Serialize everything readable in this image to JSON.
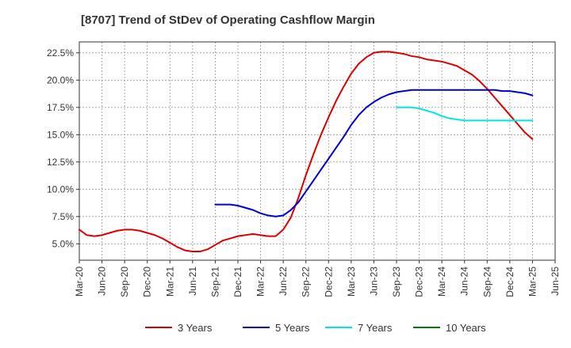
{
  "chart_data": {
    "type": "line",
    "title": "[8707]  Trend of StDev of Operating Cashflow Margin",
    "xlabel": "",
    "ylabel": "",
    "x_ticks": [
      "Mar-20",
      "Jun-20",
      "Sep-20",
      "Dec-20",
      "Mar-21",
      "Jun-21",
      "Sep-21",
      "Dec-21",
      "Mar-22",
      "Jun-22",
      "Sep-22",
      "Dec-22",
      "Mar-23",
      "Jun-23",
      "Sep-23",
      "Dec-23",
      "Mar-24",
      "Jun-24",
      "Sep-24",
      "Dec-24",
      "Mar-25",
      "Jun-25"
    ],
    "y_ticks": [
      "5.0%",
      "7.5%",
      "10.0%",
      "12.5%",
      "15.0%",
      "17.5%",
      "20.0%",
      "22.5%"
    ],
    "y_tick_values": [
      5.0,
      7.5,
      10.0,
      12.5,
      15.0,
      17.5,
      20.0,
      22.5
    ],
    "ylim": [
      3.5,
      23.5
    ],
    "grid": true,
    "legend_position": "bottom",
    "series": [
      {
        "name": "3 Years",
        "color": "#dd0000",
        "x": [
          "Mar-20",
          "Apr-20",
          "May-20",
          "Jun-20",
          "Jul-20",
          "Aug-20",
          "Sep-20",
          "Oct-20",
          "Nov-20",
          "Dec-20",
          "Jan-21",
          "Feb-21",
          "Mar-21",
          "Apr-21",
          "May-21",
          "Jun-21",
          "Jul-21",
          "Aug-21",
          "Sep-21",
          "Oct-21",
          "Nov-21",
          "Dec-21",
          "Jan-22",
          "Feb-22",
          "Mar-22",
          "Apr-22",
          "May-22",
          "Jun-22",
          "Jul-22",
          "Aug-22",
          "Sep-22",
          "Oct-22",
          "Nov-22",
          "Dec-22",
          "Jan-23",
          "Feb-23",
          "Mar-23",
          "Apr-23",
          "May-23",
          "Jun-23",
          "Jul-23",
          "Aug-23",
          "Sep-23",
          "Oct-23",
          "Nov-23",
          "Dec-23",
          "Jan-24",
          "Feb-24",
          "Mar-24",
          "Apr-24",
          "May-24",
          "Jun-24",
          "Jul-24",
          "Aug-24",
          "Sep-24",
          "Oct-24",
          "Nov-24",
          "Dec-24",
          "Jan-25",
          "Feb-25",
          "Mar-25"
        ],
        "values": [
          6.3,
          5.8,
          5.7,
          5.8,
          6.0,
          6.2,
          6.3,
          6.3,
          6.2,
          6.0,
          5.8,
          5.5,
          5.1,
          4.7,
          4.4,
          4.3,
          4.3,
          4.5,
          4.9,
          5.3,
          5.5,
          5.7,
          5.8,
          5.9,
          5.8,
          5.7,
          5.7,
          6.3,
          7.4,
          9.2,
          11.3,
          13.2,
          15.0,
          16.6,
          18.1,
          19.4,
          20.6,
          21.5,
          22.1,
          22.5,
          22.6,
          22.6,
          22.5,
          22.4,
          22.2,
          22.1,
          21.9,
          21.8,
          21.7,
          21.5,
          21.3,
          20.9,
          20.5,
          19.9,
          19.2,
          18.4,
          17.6,
          16.8,
          16.0,
          15.2,
          14.6
        ]
      },
      {
        "name": "5 Years",
        "color": "#0000cc",
        "x": [
          "Sep-21",
          "Oct-21",
          "Nov-21",
          "Dec-21",
          "Jan-22",
          "Feb-22",
          "Mar-22",
          "Apr-22",
          "May-22",
          "Jun-22",
          "Jul-22",
          "Aug-22",
          "Sep-22",
          "Oct-22",
          "Nov-22",
          "Dec-22",
          "Jan-23",
          "Feb-23",
          "Mar-23",
          "Apr-23",
          "May-23",
          "Jun-23",
          "Jul-23",
          "Aug-23",
          "Sep-23",
          "Oct-23",
          "Nov-23",
          "Dec-23",
          "Jan-24",
          "Feb-24",
          "Mar-24",
          "Apr-24",
          "May-24",
          "Jun-24",
          "Jul-24",
          "Aug-24",
          "Sep-24",
          "Oct-24",
          "Nov-24",
          "Dec-24",
          "Jan-25",
          "Feb-25",
          "Mar-25"
        ],
        "values": [
          8.6,
          8.6,
          8.6,
          8.5,
          8.3,
          8.1,
          7.8,
          7.6,
          7.5,
          7.6,
          8.1,
          8.8,
          9.8,
          10.8,
          11.8,
          12.8,
          13.8,
          14.8,
          15.9,
          16.8,
          17.5,
          18.0,
          18.4,
          18.7,
          18.9,
          19.0,
          19.1,
          19.1,
          19.1,
          19.1,
          19.1,
          19.1,
          19.1,
          19.1,
          19.1,
          19.1,
          19.1,
          19.1,
          19.0,
          19.0,
          18.9,
          18.8,
          18.6
        ]
      },
      {
        "name": "7 Years",
        "color": "#00e5e5",
        "x": [
          "Sep-23",
          "Oct-23",
          "Nov-23",
          "Dec-23",
          "Jan-24",
          "Feb-24",
          "Mar-24",
          "Apr-24",
          "May-24",
          "Jun-24",
          "Jul-24",
          "Aug-24",
          "Sep-24",
          "Oct-24",
          "Nov-24",
          "Dec-24",
          "Jan-25",
          "Feb-25",
          "Mar-25"
        ],
        "values": [
          17.5,
          17.5,
          17.5,
          17.4,
          17.2,
          17.0,
          16.7,
          16.5,
          16.4,
          16.3,
          16.3,
          16.3,
          16.3,
          16.3,
          16.3,
          16.3,
          16.3,
          16.3,
          16.3
        ]
      },
      {
        "name": "10 Years",
        "color": "#008000",
        "x": [],
        "values": []
      }
    ]
  }
}
